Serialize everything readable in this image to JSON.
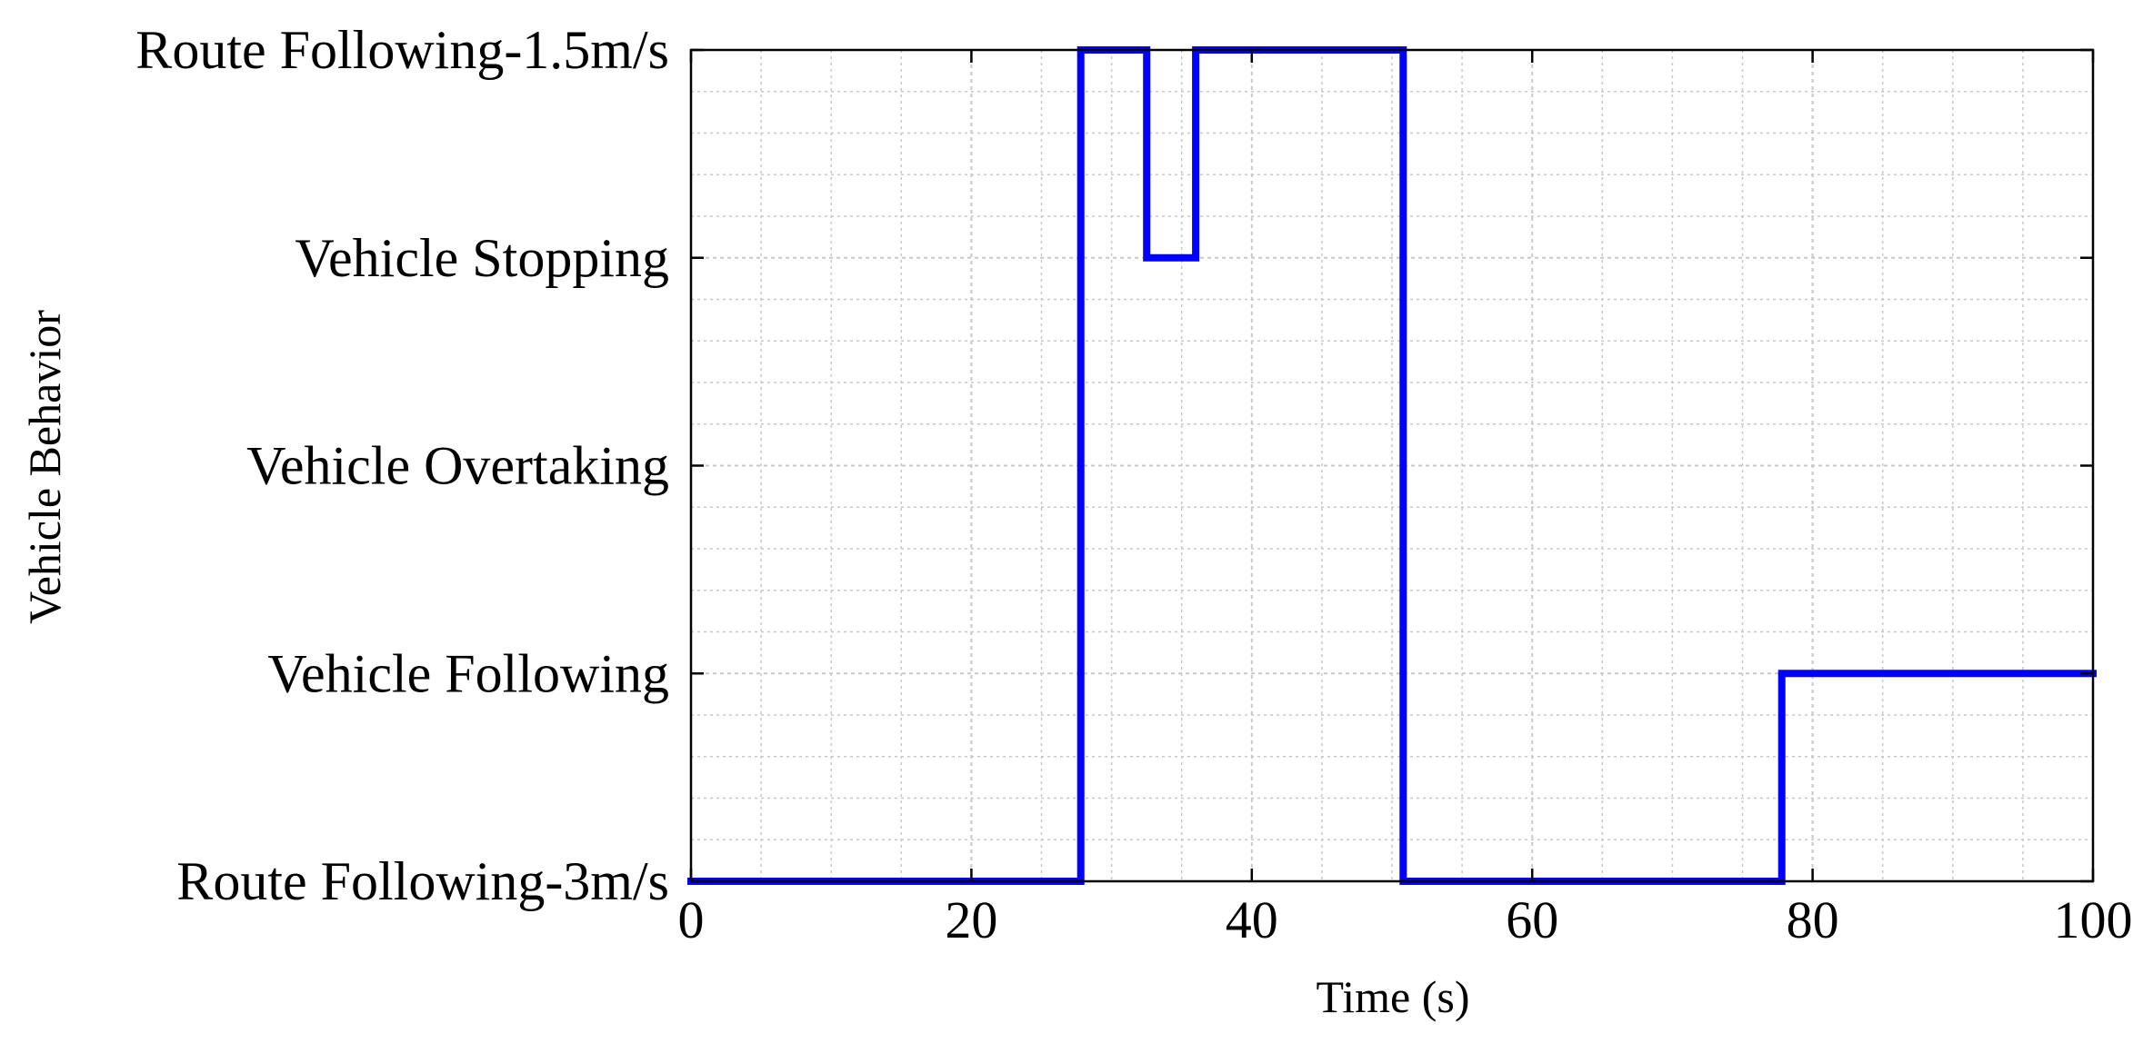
{
  "chart_data": {
    "type": "line",
    "title": "",
    "xlabel": "Time (s)",
    "ylabel": "Vehicle Behavior",
    "xlim": [
      0,
      100
    ],
    "x_ticks": [
      "0",
      "20",
      "40",
      "60",
      "80",
      "100"
    ],
    "x_tick_values": [
      0,
      20,
      40,
      60,
      80,
      100
    ],
    "y_categories": [
      "Route Following-3m/s",
      "Vehicle Following",
      "Vehicle Overtaking",
      "Vehicle Stopping",
      "Route Following-1.5m/s"
    ],
    "grid": true,
    "minor_grid": true,
    "line_style": "step",
    "series": [
      {
        "color": "#0000ff",
        "x": [
          0,
          27.8,
          27.8,
          32.5,
          32.5,
          36,
          36,
          50.8,
          50.8,
          77.8,
          77.8,
          100
        ],
        "y": [
          "Route Following-3m/s",
          "Route Following-3m/s",
          "Route Following-1.5m/s",
          "Route Following-1.5m/s",
          "Vehicle Stopping",
          "Vehicle Stopping",
          "Route Following-1.5m/s",
          "Route Following-1.5m/s",
          "Route Following-3m/s",
          "Route Following-3m/s",
          "Vehicle Following",
          "Vehicle Following"
        ]
      }
    ]
  }
}
